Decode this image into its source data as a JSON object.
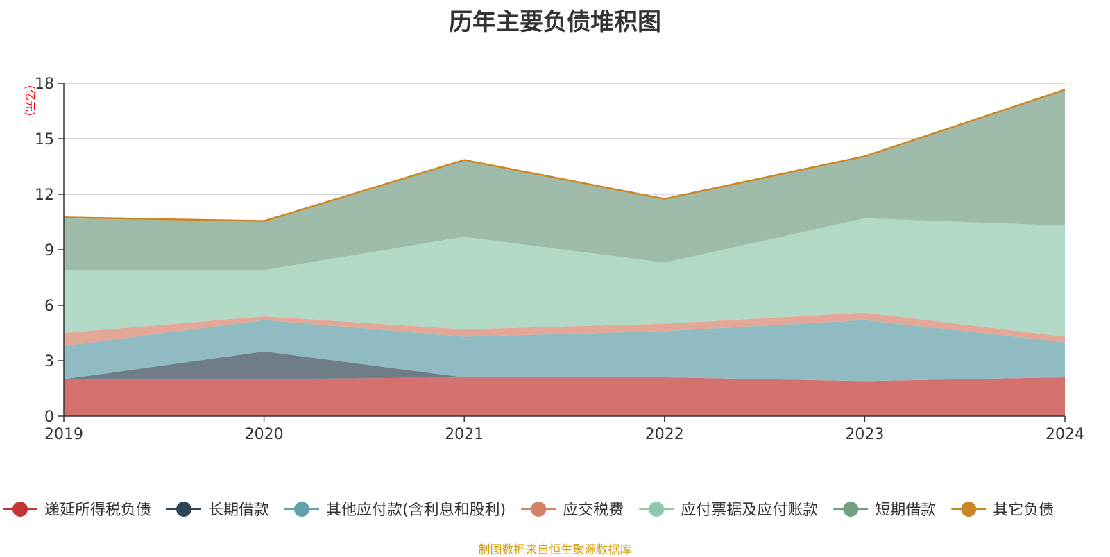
{
  "chart_data": {
    "type": "area",
    "stacked": true,
    "title": "历年主要负债堆积图",
    "unit_label": "(亿元)",
    "categories": [
      "2019",
      "2020",
      "2021",
      "2022",
      "2023",
      "2024"
    ],
    "ylim": [
      0,
      18
    ],
    "yticks": [
      0,
      3,
      6,
      9,
      12,
      15,
      18
    ],
    "grid": true,
    "legend_position": "bottom",
    "series": [
      {
        "name": "递延所得税负债",
        "color": "#c23531",
        "fill": "#d4706d",
        "values": [
          2.0,
          2.0,
          2.1,
          2.1,
          1.9,
          2.1
        ]
      },
      {
        "name": "长期借款",
        "color": "#2f4554",
        "fill": "#6f7d87",
        "values": [
          0.0,
          1.5,
          0.0,
          0.0,
          0.0,
          0.0
        ]
      },
      {
        "name": "其他应付款(含利息和股利)",
        "color": "#61a0a8",
        "fill": "#90bbc2",
        "values": [
          1.8,
          1.7,
          2.2,
          2.5,
          3.3,
          1.9
        ]
      },
      {
        "name": "应交税费",
        "color": "#d48265",
        "fill": "#e2a797",
        "values": [
          0.7,
          0.2,
          0.4,
          0.4,
          0.4,
          0.3
        ]
      },
      {
        "name": "应付票据及应付账款",
        "color": "#91c7ae",
        "fill": "#b2d9c6",
        "values": [
          3.4,
          2.5,
          5.0,
          3.3,
          5.1,
          6.0
        ]
      },
      {
        "name": "短期借款",
        "color": "#749f83",
        "fill": "#9dbba8",
        "values": [
          2.8,
          2.6,
          4.1,
          3.4,
          3.3,
          7.3
        ]
      },
      {
        "name": "其它负债",
        "color": "#ca8622",
        "fill": "#e8a54a",
        "values": [
          0.05,
          0.05,
          0.05,
          0.05,
          0.05,
          0.05
        ]
      }
    ]
  },
  "footer": {
    "source": "制图数据来自恒生聚源数据库"
  }
}
